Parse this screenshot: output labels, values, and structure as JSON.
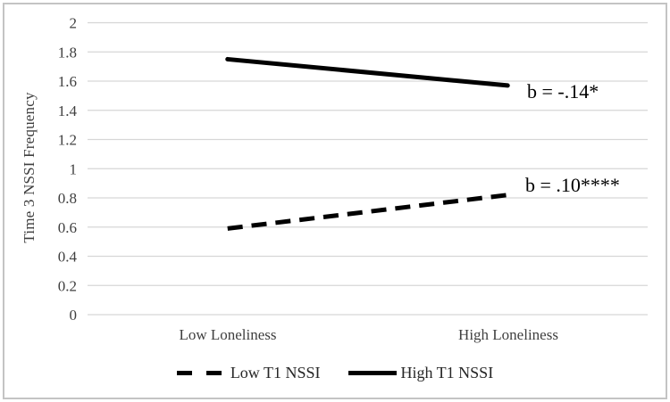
{
  "figure": {
    "background": "#ffffff",
    "border_color": "#c4c4c4"
  },
  "chart_data": {
    "type": "line",
    "title": "",
    "categories": [
      "Low Loneliness",
      "High Loneliness"
    ],
    "series": [
      {
        "name": "Low T1 NSSI",
        "line_style": "dashed",
        "values": [
          0.59,
          0.82
        ],
        "annotation": "b = .10****"
      },
      {
        "name": "High T1 NSSI",
        "line_style": "solid",
        "values": [
          1.75,
          1.57
        ],
        "annotation": "b = -.14*"
      }
    ],
    "xlabel": "",
    "ylabel": "Time 3 NSSI Frequency",
    "ylim": [
      0,
      2
    ],
    "ytick_step": 0.2,
    "ytick_labels": [
      "0",
      "0.2",
      "0.4",
      "0.6",
      "0.8",
      "1",
      "1.2",
      "1.4",
      "1.6",
      "1.8",
      "2"
    ],
    "grid": true,
    "legend_position": "bottom",
    "colors": {
      "line": "#000000",
      "grid": "#d6d6d6",
      "axis_text": "#3f3f3f",
      "annotation": "#000000"
    }
  }
}
